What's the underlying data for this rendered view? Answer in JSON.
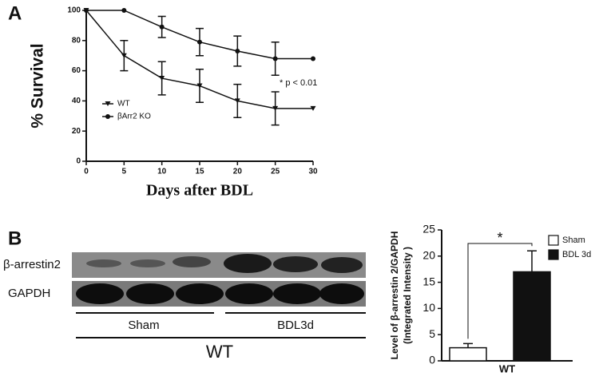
{
  "panels": [
    "A",
    "B"
  ],
  "chart_data": [
    {
      "type": "line",
      "ylabel": "% Survival",
      "xlabel": "Days after BDL",
      "annotation": "* p < 0.01",
      "x": [
        0,
        5,
        10,
        15,
        20,
        25,
        30
      ],
      "xlim": [
        0,
        30
      ],
      "xticks": [
        0,
        5,
        10,
        15,
        20,
        25,
        30
      ],
      "ylim": [
        0,
        100
      ],
      "yticks": [
        0,
        20,
        40,
        60,
        80,
        100
      ],
      "series": [
        {
          "name": "WT",
          "color": "#111111",
          "marker": "triangle",
          "values": [
            100,
            70,
            55,
            50,
            40,
            35,
            35
          ],
          "errors": [
            null,
            10,
            11,
            11,
            11,
            11,
            null
          ]
        },
        {
          "name": "βArr2 KO",
          "color": "#111111",
          "marker": "circle",
          "values": [
            100,
            100,
            89,
            79,
            73,
            68,
            68
          ],
          "errors": [
            null,
            null,
            7,
            9,
            10,
            11,
            null
          ]
        }
      ]
    },
    {
      "type": "bar",
      "ylabel": [
        "Level of β-arrestin 2/GAPDH",
        "(Integrated Intensity )"
      ],
      "annotation": "*",
      "categories": [
        "WT"
      ],
      "ylim": [
        0,
        25
      ],
      "yticks": [
        0,
        5,
        10,
        15,
        20,
        25
      ],
      "series": [
        {
          "name": "Sham",
          "color": "#ffffff",
          "values": [
            2.5
          ],
          "errors": [
            0.8
          ]
        },
        {
          "name": "BDL 3d",
          "color": "#111111",
          "values": [
            17
          ],
          "errors": [
            4
          ]
        }
      ]
    }
  ],
  "blot": {
    "rows": [
      "β-arrestin2",
      "GAPDH"
    ],
    "groups": [
      "Sham",
      "BDL3d"
    ],
    "genotype": "WT"
  }
}
